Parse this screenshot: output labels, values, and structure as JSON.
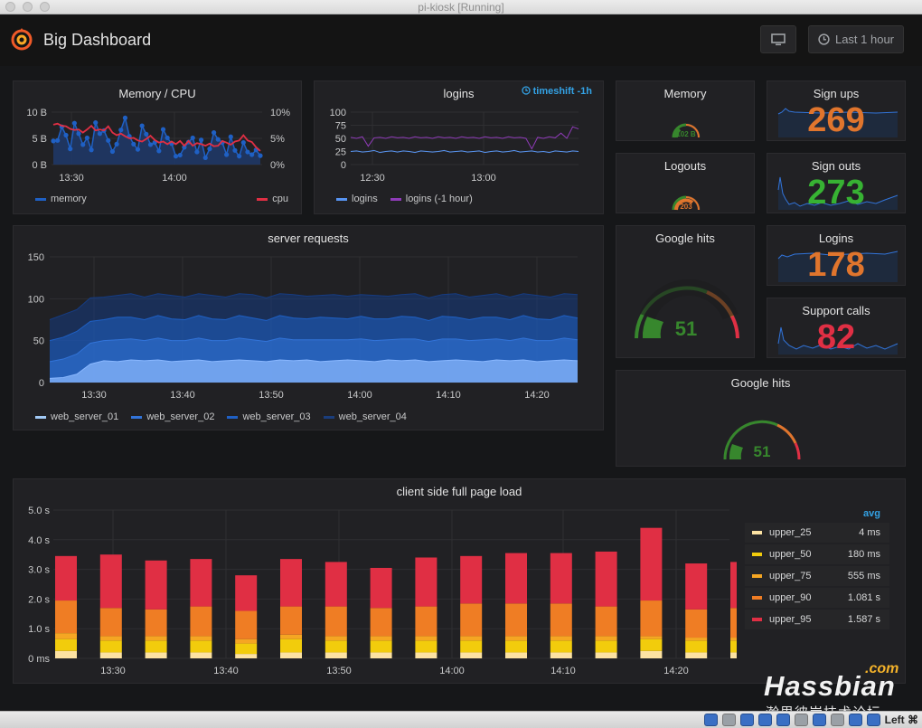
{
  "window": {
    "title": "pi-kiosk [Running]"
  },
  "header": {
    "title": "Big Dashboard",
    "time_picker": "Last 1 hour",
    "tv_icon": "monitor-icon",
    "clock_icon": "clock-icon"
  },
  "panels": {
    "memory_cpu": {
      "title": "Memory / CPU",
      "y_left_ticks": [
        "10 B",
        "5 B",
        "0 B"
      ],
      "y_right_ticks": [
        "10%",
        "5%",
        "0%"
      ],
      "x_ticks": [
        "13:30",
        "14:00"
      ],
      "legend": [
        {
          "name": "memory",
          "color": "#1f60c4"
        },
        {
          "name": "cpu",
          "color": "#e02f44"
        }
      ]
    },
    "logins": {
      "title": "logins",
      "timeshift": "timeshift -1h",
      "y_ticks": [
        "100",
        "75",
        "50",
        "25",
        "0"
      ],
      "x_ticks": [
        "12:30",
        "13:00"
      ],
      "legend": [
        {
          "name": "logins",
          "color": "#5794f2"
        },
        {
          "name": "logins (-1 hour)",
          "color": "#8f3bb8"
        }
      ]
    },
    "memory_gauge": {
      "title": "Memory",
      "value": "102 B"
    },
    "logouts_gauge": {
      "title": "Logouts",
      "value": "203"
    },
    "signups": {
      "title": "Sign ups",
      "value": "269",
      "color": "#e0752d"
    },
    "signouts": {
      "title": "Sign outs",
      "value": "273",
      "color": "#37b233"
    },
    "logins_stat": {
      "title": "Logins",
      "value": "178",
      "color": "#e0752d"
    },
    "support_calls": {
      "title": "Support calls",
      "value": "82",
      "color": "#e02f44"
    },
    "google_hits_1": {
      "title": "Google hits",
      "value": "51",
      "color": "#37872d"
    },
    "google_hits_2": {
      "title": "Google hits",
      "value": "51",
      "color": "#37872d"
    },
    "server_requests": {
      "title": "server requests",
      "y_ticks": [
        "150",
        "100",
        "50",
        "0"
      ],
      "x_ticks": [
        "13:30",
        "13:40",
        "13:50",
        "14:00",
        "14:10",
        "14:20"
      ],
      "legend": [
        {
          "name": "web_server_01",
          "color": "#a1c9f5"
        },
        {
          "name": "web_server_02",
          "color": "#3274d9"
        },
        {
          "name": "web_server_03",
          "color": "#1f60c4"
        },
        {
          "name": "web_server_04",
          "color": "#1a3d7c"
        }
      ]
    },
    "page_load": {
      "title": "client side full page load",
      "y_ticks": [
        "5.0 s",
        "4.0 s",
        "3.0 s",
        "2.0 s",
        "1.0 s",
        "0 ms"
      ],
      "x_ticks": [
        "13:30",
        "13:40",
        "13:50",
        "14:00",
        "14:10",
        "14:20"
      ],
      "legend_header": "avg",
      "legend": [
        {
          "name": "upper_25",
          "avg": "4 ms",
          "color": "#fce2a2"
        },
        {
          "name": "upper_50",
          "avg": "180 ms",
          "color": "#f2cc0c"
        },
        {
          "name": "upper_75",
          "avg": "555 ms",
          "color": "#f5a623"
        },
        {
          "name": "upper_90",
          "avg": "1.081 s",
          "color": "#ef7d24"
        },
        {
          "name": "upper_95",
          "avg": "1.587 s",
          "color": "#e02f44"
        }
      ]
    }
  },
  "chart_data": [
    {
      "type": "line",
      "title": "Memory / CPU",
      "series": [
        {
          "name": "memory",
          "values": [
            4.5,
            4.6,
            7.2,
            5.6,
            3.0,
            7.9,
            5.9,
            3.8,
            5.1,
            2.8,
            8.0,
            5.9,
            6.5,
            4.6,
            2.5,
            3.9,
            6.6,
            8.9,
            5.4,
            3.9,
            2.9,
            7.4,
            5.8,
            3.8,
            4.2,
            2.6,
            6.7,
            5.1,
            4.0,
            1.6,
            1.8,
            3.3,
            4.3,
            5.1,
            2.4,
            4.7,
            1.3,
            3.0,
            6.1,
            4.8,
            4.2,
            1.9,
            5.3,
            2.7,
            1.6,
            4.2,
            2.4,
            1.9,
            2.8,
            1.7
          ]
        },
        {
          "name": "cpu",
          "values": [
            7.6,
            7.8,
            7.4,
            7.3,
            6.8,
            6.6,
            6.7,
            6.1,
            6.7,
            7.4,
            6.5,
            6.7,
            6.5,
            7.3,
            6.1,
            5.6,
            5.9,
            5.4,
            5.0,
            5.1,
            4.6,
            4.4,
            4.9,
            5.5,
            4.7,
            4.2,
            4.4,
            3.9,
            4.4,
            3.9,
            4.5,
            3.6,
            4.5,
            3.6,
            4.1,
            3.9,
            3.6,
            4.0,
            3.5,
            3.6,
            4.5,
            4.2,
            3.8,
            4.4,
            4.6,
            5.6,
            4.6,
            4.3,
            3.3,
            2.6
          ]
        }
      ]
    },
    {
      "type": "line",
      "title": "logins",
      "series": [
        {
          "name": "logins",
          "values": [
            25,
            26,
            24,
            25,
            27,
            23,
            25,
            26,
            24,
            26,
            25,
            23,
            26,
            25,
            24,
            25,
            27,
            24,
            25,
            26,
            24,
            25,
            26,
            23,
            25,
            26,
            24,
            25,
            27,
            24,
            25,
            26,
            24,
            25,
            23,
            26,
            25,
            24,
            26,
            25
          ]
        },
        {
          "name": "logins (-1 hour)",
          "values": [
            52,
            50,
            53,
            35,
            51,
            52,
            50,
            53,
            51,
            52,
            50,
            53,
            51,
            52,
            50,
            53,
            51,
            52,
            50,
            53,
            51,
            52,
            50,
            53,
            51,
            52,
            50,
            53,
            51,
            52,
            50,
            30,
            52,
            50,
            53,
            51,
            60,
            50,
            72,
            68
          ]
        }
      ]
    },
    {
      "type": "area",
      "title": "server requests",
      "stacked": true,
      "series": [
        {
          "name": "web_server_01",
          "values": [
            5,
            6,
            10,
            22,
            26,
            25,
            27,
            26,
            27,
            25,
            26,
            27,
            25,
            26,
            27,
            26,
            25,
            27,
            26,
            27,
            25,
            26,
            27,
            26,
            25,
            27,
            26,
            27,
            25,
            26,
            27,
            26,
            25,
            27,
            26,
            27,
            25,
            26,
            27,
            26
          ]
        },
        {
          "name": "web_server_02",
          "values": [
            20,
            22,
            24,
            25,
            24,
            26,
            25,
            24,
            26,
            25,
            24,
            26,
            25,
            24,
            26,
            25,
            24,
            26,
            25,
            24,
            26,
            25,
            24,
            26,
            25,
            24,
            26,
            25,
            24,
            26,
            25,
            24,
            26,
            25,
            24,
            26,
            25,
            24,
            26,
            25
          ]
        },
        {
          "name": "web_server_03",
          "values": [
            25,
            26,
            27,
            26,
            25,
            27,
            26,
            25,
            27,
            26,
            25,
            27,
            26,
            25,
            27,
            26,
            25,
            27,
            26,
            25,
            27,
            26,
            25,
            27,
            26,
            25,
            27,
            26,
            25,
            27,
            26,
            25,
            27,
            26,
            25,
            27,
            26,
            25,
            27,
            26
          ]
        },
        {
          "name": "web_server_04",
          "values": [
            25,
            27,
            26,
            28,
            27,
            26,
            28,
            27,
            26,
            28,
            27,
            26,
            28,
            27,
            26,
            28,
            27,
            26,
            28,
            27,
            26,
            28,
            27,
            26,
            28,
            27,
            26,
            28,
            27,
            26,
            28,
            27,
            26,
            28,
            27,
            26,
            28,
            27,
            26,
            28
          ]
        }
      ],
      "ylim": [
        0,
        150
      ]
    },
    {
      "type": "bar",
      "title": "client side full page load",
      "stacked": true,
      "series": [
        {
          "name": "upper_25",
          "values": [
            0.25,
            0.2,
            0.2,
            0.2,
            0.15,
            0.2,
            0.2,
            0.2,
            0.2,
            0.2,
            0.2,
            0.2,
            0.2,
            0.25,
            0.2,
            0.2
          ]
        },
        {
          "name": "upper_50",
          "values": [
            0.4,
            0.4,
            0.4,
            0.4,
            0.35,
            0.45,
            0.4,
            0.4,
            0.4,
            0.4,
            0.4,
            0.4,
            0.4,
            0.4,
            0.4,
            0.4
          ]
        },
        {
          "name": "upper_75",
          "values": [
            0.2,
            0.15,
            0.15,
            0.15,
            0.15,
            0.15,
            0.15,
            0.15,
            0.15,
            0.15,
            0.15,
            0.15,
            0.15,
            0.1,
            0.1,
            0.1
          ]
        },
        {
          "name": "upper_90",
          "values": [
            1.1,
            0.95,
            0.9,
            1.0,
            0.95,
            0.95,
            1.0,
            0.95,
            1.0,
            1.1,
            1.1,
            1.1,
            1.0,
            1.2,
            0.95,
            1.0
          ]
        },
        {
          "name": "upper_95",
          "values": [
            1.5,
            1.8,
            1.65,
            1.6,
            1.2,
            1.6,
            1.5,
            1.35,
            1.65,
            1.6,
            1.7,
            1.7,
            1.85,
            2.45,
            1.55,
            1.55
          ]
        }
      ],
      "ylim": [
        0,
        5
      ]
    }
  ]
}
